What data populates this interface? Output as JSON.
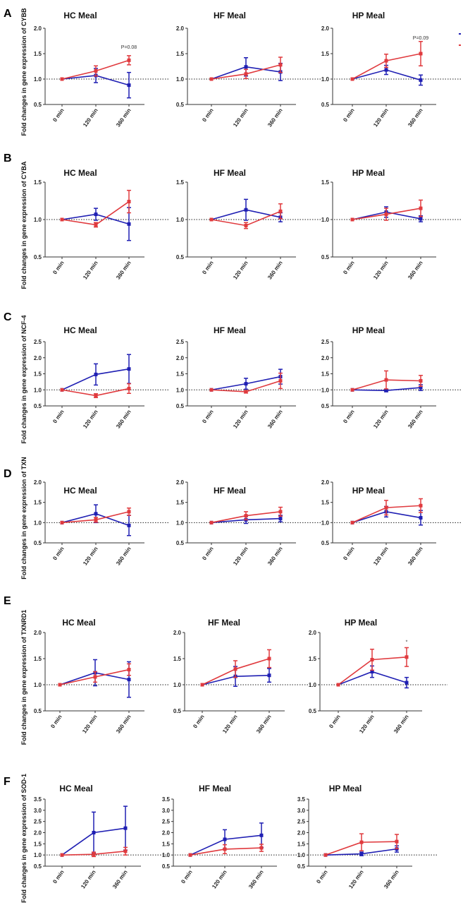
{
  "colors": {
    "series1": "#1f1fb3",
    "series2": "#e03a3e",
    "axis": "#333333",
    "reference": "#222222"
  },
  "legend": {
    "series1_label": "",
    "series2_label": ""
  },
  "chart_data": [
    {
      "panel": "A",
      "ylabel": "Fold changes in gene expression of CYBB",
      "charts": [
        {
          "type": "line",
          "title": "HC Meal",
          "categories": [
            "0 min",
            "120 min",
            "360 min"
          ],
          "ylim": [
            0.5,
            2.0
          ],
          "yticks": [
            "0.5",
            "1.0",
            "1.5",
            "2.0"
          ],
          "reference_y": 1.0,
          "series": [
            {
              "name": "series1",
              "values": [
                1.0,
                1.07,
                0.88
              ],
              "errors": [
                0,
                0.14,
                0.25
              ]
            },
            {
              "name": "series2",
              "values": [
                1.0,
                1.16,
                1.37
              ],
              "errors": [
                0,
                0.1,
                0.09
              ]
            }
          ],
          "annotations": [
            {
              "text": "P=0.08",
              "category": "360 min",
              "y": 1.6
            }
          ]
        },
        {
          "type": "line",
          "title": "HF Meal",
          "categories": [
            "0 min",
            "120 min",
            "360 min"
          ],
          "ylim": [
            0.5,
            2.0
          ],
          "yticks": [
            "0.5",
            "1.0",
            "1.5",
            "2.0"
          ],
          "reference_y": 1.0,
          "series": [
            {
              "name": "series1",
              "values": [
                1.0,
                1.24,
                1.14
              ],
              "errors": [
                0,
                0.18,
                0.17
              ]
            },
            {
              "name": "series2",
              "values": [
                1.0,
                1.1,
                1.28
              ],
              "errors": [
                0,
                0.09,
                0.15
              ]
            }
          ],
          "annotations": []
        },
        {
          "type": "line",
          "title": "HP Meal",
          "categories": [
            "0 min",
            "120 min",
            "360 min"
          ],
          "ylim": [
            0.5,
            2.0
          ],
          "yticks": [
            "0.5",
            "1.0",
            "1.5",
            "2.0"
          ],
          "reference_y": 1.0,
          "series": [
            {
              "name": "series1",
              "values": [
                1.0,
                1.18,
                0.98
              ],
              "errors": [
                0,
                0.09,
                0.1
              ]
            },
            {
              "name": "series2",
              "values": [
                1.0,
                1.36,
                1.5
              ],
              "errors": [
                0,
                0.13,
                0.24
              ]
            }
          ],
          "annotations": [
            {
              "text": "P=0.09",
              "category": "360 min",
              "y": 1.78
            }
          ]
        }
      ]
    },
    {
      "panel": "B",
      "ylabel": "Fold changes in gene expression of CYBA",
      "charts": [
        {
          "type": "line",
          "title": "HC Meal",
          "categories": [
            "0 min",
            "120 min",
            "360 min"
          ],
          "ylim": [
            0.5,
            1.5
          ],
          "yticks": [
            "0.5",
            "1.0",
            "1.5"
          ],
          "reference_y": 1.0,
          "series": [
            {
              "name": "series1",
              "values": [
                1.0,
                1.07,
                0.94
              ],
              "errors": [
                0,
                0.08,
                0.22
              ]
            },
            {
              "name": "series2",
              "values": [
                1.0,
                0.93,
                1.24
              ],
              "errors": [
                0,
                0.03,
                0.15
              ]
            }
          ],
          "annotations": []
        },
        {
          "type": "line",
          "title": "HF Meal",
          "categories": [
            "0 min",
            "120 min",
            "360 min"
          ],
          "ylim": [
            0.5,
            1.5
          ],
          "yticks": [
            "0.5",
            "1.0",
            "1.5"
          ],
          "reference_y": 1.0,
          "series": [
            {
              "name": "series1",
              "values": [
                1.0,
                1.13,
                1.03
              ],
              "errors": [
                0,
                0.14,
                0.06
              ]
            },
            {
              "name": "series2",
              "values": [
                1.0,
                0.92,
                1.11
              ],
              "errors": [
                0,
                0.04,
                0.1
              ]
            }
          ],
          "annotations": []
        },
        {
          "type": "line",
          "title": "HP Meal",
          "categories": [
            "0 min",
            "120 min",
            "360 min"
          ],
          "ylim": [
            0.5,
            1.5
          ],
          "yticks": [
            "0.5",
            "1.0",
            "1.5"
          ],
          "reference_y": 1.0,
          "series": [
            {
              "name": "series1",
              "values": [
                1.0,
                1.1,
                1.01
              ],
              "errors": [
                0,
                0.07,
                0.04
              ]
            },
            {
              "name": "series2",
              "values": [
                1.0,
                1.07,
                1.15
              ],
              "errors": [
                0,
                0.08,
                0.11
              ]
            }
          ],
          "annotations": []
        }
      ]
    },
    {
      "panel": "C",
      "ylabel": "Fold changes in gene expression of NCF-4",
      "charts": [
        {
          "type": "line",
          "title": "HC Meal",
          "categories": [
            "0 min",
            "120 min",
            "360 min"
          ],
          "ylim": [
            0.5,
            2.5
          ],
          "yticks": [
            "0.5",
            "1.0",
            "1.5",
            "2.0",
            "2.5"
          ],
          "reference_y": 1.0,
          "series": [
            {
              "name": "series1",
              "values": [
                1.0,
                1.48,
                1.65
              ],
              "errors": [
                0,
                0.33,
                0.45
              ]
            },
            {
              "name": "series2",
              "values": [
                1.0,
                0.82,
                1.04
              ],
              "errors": [
                0,
                0.06,
                0.15
              ]
            }
          ],
          "annotations": []
        },
        {
          "type": "line",
          "title": "HF Meal",
          "categories": [
            "0 min",
            "120 min",
            "360 min"
          ],
          "ylim": [
            0.5,
            2.5
          ],
          "yticks": [
            "0.5",
            "1.0",
            "1.5",
            "2.0",
            "2.5"
          ],
          "reference_y": 1.0,
          "series": [
            {
              "name": "series1",
              "values": [
                1.0,
                1.19,
                1.41
              ],
              "errors": [
                0,
                0.17,
                0.23
              ]
            },
            {
              "name": "series2",
              "values": [
                1.0,
                0.94,
                1.28
              ],
              "errors": [
                0,
                0.04,
                0.24
              ]
            }
          ],
          "annotations": []
        },
        {
          "type": "line",
          "title": "HP Meal",
          "categories": [
            "0 min",
            "120 min",
            "360 min"
          ],
          "ylim": [
            0.5,
            2.5
          ],
          "yticks": [
            "0.5",
            "1.0",
            "1.5",
            "2.0",
            "2.5"
          ],
          "reference_y": 1.0,
          "series": [
            {
              "name": "series1",
              "values": [
                1.0,
                0.98,
                1.07
              ],
              "errors": [
                0,
                0.04,
                0.09
              ]
            },
            {
              "name": "series2",
              "values": [
                1.0,
                1.31,
                1.28
              ],
              "errors": [
                0,
                0.28,
                0.17
              ]
            }
          ],
          "annotations": []
        }
      ]
    },
    {
      "panel": "D",
      "ylabel": "Fold changes in gene expression of TXN",
      "charts": [
        {
          "type": "line",
          "title": "HC Meal",
          "categories": [
            "0 min",
            "120 min",
            "360 min"
          ],
          "ylim": [
            0.5,
            2.0
          ],
          "yticks": [
            "0.5",
            "1.0",
            "1.5",
            "2.0"
          ],
          "reference_y": 1.0,
          "series": [
            {
              "name": "series1",
              "values": [
                1.0,
                1.22,
                0.93
              ],
              "errors": [
                0,
                0.22,
                0.25
              ]
            },
            {
              "name": "series2",
              "values": [
                1.0,
                1.07,
                1.27
              ],
              "errors": [
                0,
                0.06,
                0.09
              ]
            }
          ],
          "annotations": []
        },
        {
          "type": "line",
          "title": "HF Meal",
          "categories": [
            "0 min",
            "120 min",
            "360 min"
          ],
          "ylim": [
            0.5,
            2.0
          ],
          "yticks": [
            "0.5",
            "1.0",
            "1.5",
            "2.0"
          ],
          "reference_y": 1.0,
          "series": [
            {
              "name": "series1",
              "values": [
                1.0,
                1.07,
                1.1
              ],
              "errors": [
                0,
                0.09,
                0.08
              ]
            },
            {
              "name": "series2",
              "values": [
                1.0,
                1.17,
                1.27
              ],
              "errors": [
                0,
                0.1,
                0.11
              ]
            }
          ],
          "annotations": []
        },
        {
          "type": "line",
          "title": "HP Meal",
          "categories": [
            "0 min",
            "120 min",
            "360 min"
          ],
          "ylim": [
            0.5,
            2.0
          ],
          "yticks": [
            "0.5",
            "1.0",
            "1.5",
            "2.0"
          ],
          "reference_y": 1.0,
          "series": [
            {
              "name": "series1",
              "values": [
                1.0,
                1.27,
                1.12
              ],
              "errors": [
                0,
                0.13,
                0.18
              ]
            },
            {
              "name": "series2",
              "values": [
                1.0,
                1.37,
                1.42
              ],
              "errors": [
                0,
                0.18,
                0.17
              ]
            }
          ],
          "annotations": []
        }
      ]
    },
    {
      "panel": "E",
      "ylabel": "Fold changes in gene expression of TXNRD1",
      "charts": [
        {
          "type": "line",
          "title": "HC Meal",
          "categories": [
            "0 min",
            "120 min",
            "360 min"
          ],
          "ylim": [
            0.5,
            2.0
          ],
          "yticks": [
            "0.5",
            "1.0",
            "1.5",
            "2.0"
          ],
          "reference_y": 1.0,
          "series": [
            {
              "name": "series1",
              "values": [
                1.0,
                1.23,
                1.1
              ],
              "errors": [
                0,
                0.25,
                0.34
              ]
            },
            {
              "name": "series2",
              "values": [
                1.0,
                1.15,
                1.29
              ],
              "errors": [
                0,
                0.1,
                0.11
              ]
            }
          ],
          "annotations": []
        },
        {
          "type": "line",
          "title": "HF Meal",
          "categories": [
            "0 min",
            "120 min",
            "360 min"
          ],
          "ylim": [
            0.5,
            2.0
          ],
          "yticks": [
            "0.5",
            "1.0",
            "1.5",
            "2.0"
          ],
          "reference_y": 1.0,
          "series": [
            {
              "name": "series1",
              "values": [
                1.0,
                1.16,
                1.18
              ],
              "errors": [
                0,
                0.19,
                0.13
              ]
            },
            {
              "name": "series2",
              "values": [
                1.0,
                1.3,
                1.5
              ],
              "errors": [
                0,
                0.16,
                0.17
              ]
            }
          ],
          "annotations": []
        },
        {
          "type": "line",
          "title": "HP Meal",
          "categories": [
            "0 min",
            "120 min",
            "360 min"
          ],
          "ylim": [
            0.5,
            2.0
          ],
          "yticks": [
            "0.5",
            "1.0",
            "1.5",
            "2.0"
          ],
          "reference_y": 1.0,
          "series": [
            {
              "name": "series1",
              "values": [
                1.0,
                1.25,
                1.04
              ],
              "errors": [
                0,
                0.11,
                0.1
              ]
            },
            {
              "name": "series2",
              "values": [
                1.0,
                1.48,
                1.53
              ],
              "errors": [
                0,
                0.2,
                0.18
              ]
            }
          ],
          "annotations": [
            {
              "text": "*",
              "category": "360 min",
              "y": 1.79
            }
          ]
        }
      ]
    },
    {
      "panel": "F",
      "ylabel": "Fold changes in gene expression of SOD-1",
      "charts": [
        {
          "type": "line",
          "title": "HC Meal",
          "categories": [
            "0 min",
            "120 min",
            "360 min"
          ],
          "ylim": [
            0.5,
            3.5
          ],
          "yticks": [
            "0.5",
            "1.0",
            "1.5",
            "2.0",
            "2.5",
            "3.0",
            "3.5"
          ],
          "reference_y": 1.0,
          "series": [
            {
              "name": "series1",
              "values": [
                1.0,
                2.0,
                2.2
              ],
              "errors": [
                0,
                0.92,
                0.98
              ]
            },
            {
              "name": "series2",
              "values": [
                1.0,
                1.03,
                1.17
              ],
              "errors": [
                0,
                0.1,
                0.17
              ]
            }
          ],
          "annotations": []
        },
        {
          "type": "line",
          "title": "HF Meal",
          "categories": [
            "0 min",
            "120 min",
            "360 min"
          ],
          "ylim": [
            0.5,
            3.5
          ],
          "yticks": [
            "0.5",
            "1.0",
            "1.5",
            "2.0",
            "2.5",
            "3.0",
            "3.5"
          ],
          "reference_y": 1.0,
          "series": [
            {
              "name": "series1",
              "values": [
                1.0,
                1.7,
                1.88
              ],
              "errors": [
                0,
                0.43,
                0.55
              ]
            },
            {
              "name": "series2",
              "values": [
                1.0,
                1.26,
                1.32
              ],
              "errors": [
                0,
                0.2,
                0.16
              ]
            }
          ],
          "annotations": []
        },
        {
          "type": "line",
          "title": "HP Meal",
          "categories": [
            "0 min",
            "120 min",
            "360 min"
          ],
          "ylim": [
            0.5,
            3.5
          ],
          "yticks": [
            "0.5",
            "1.0",
            "1.5",
            "2.0",
            "2.5",
            "3.0",
            "3.5"
          ],
          "reference_y": 1.0,
          "series": [
            {
              "name": "series1",
              "values": [
                1.0,
                1.05,
                1.27
              ],
              "errors": [
                0,
                0.08,
                0.14
              ]
            },
            {
              "name": "series2",
              "values": [
                1.0,
                1.57,
                1.6
              ],
              "errors": [
                0,
                0.38,
                0.32
              ]
            }
          ],
          "annotations": []
        }
      ]
    }
  ]
}
